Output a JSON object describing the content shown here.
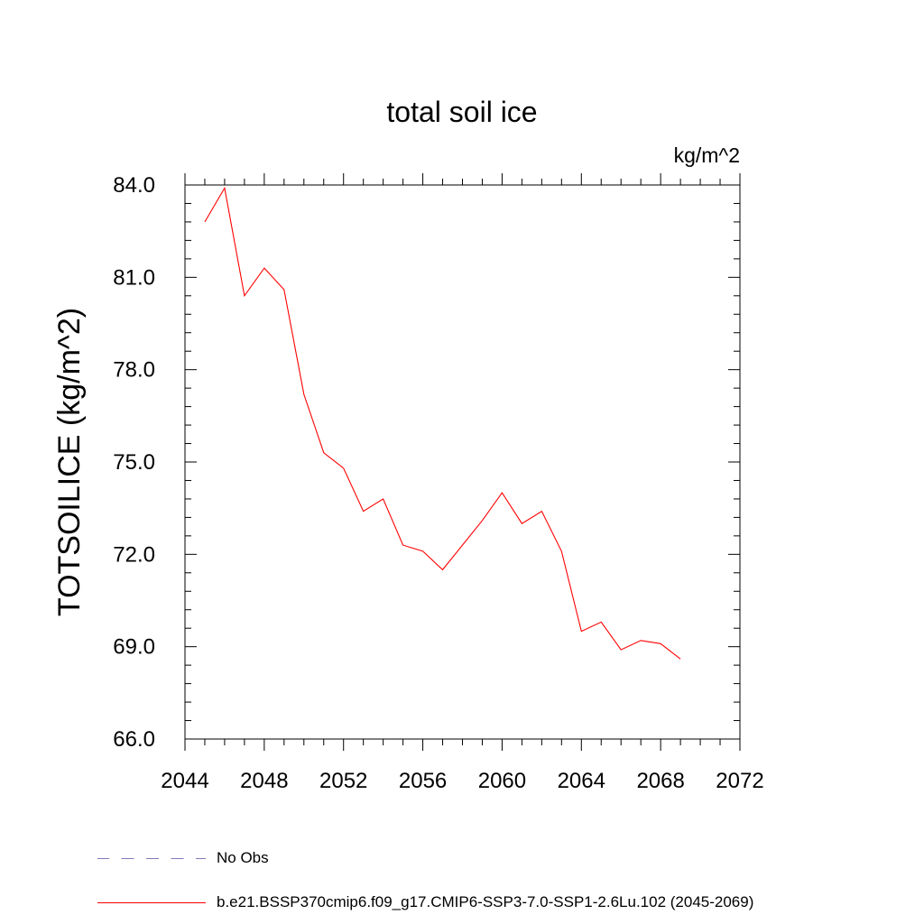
{
  "chart_data": {
    "type": "line",
    "title": "total soil ice",
    "units_label": "kg/m^2",
    "ylabel": "TOTSOILICE  (kg/m^2)",
    "xlabel": "",
    "xlim": [
      2044,
      2072
    ],
    "ylim": [
      66,
      84
    ],
    "x_ticks": [
      2044,
      2048,
      2052,
      2056,
      2060,
      2064,
      2068,
      2072
    ],
    "y_ticks": [
      66,
      69,
      72,
      75,
      78,
      81,
      84
    ],
    "x_tick_labels": [
      "2044",
      "2048",
      "2052",
      "2056",
      "2060",
      "2064",
      "2068",
      "2072"
    ],
    "y_tick_labels": [
      "66.0",
      "69.0",
      "72.0",
      "75.0",
      "78.0",
      "81.0",
      "84.0"
    ],
    "grid": false,
    "series": [
      {
        "name": "b.e21.BSSP370cmip6.f09_g17.CMIP6-SSP3-7.0-SSP1-2.6Lu.102 (2045-2069)",
        "color": "#ff0000",
        "style": "solid",
        "x": [
          2045,
          2046,
          2047,
          2048,
          2049,
          2050,
          2051,
          2052,
          2053,
          2054,
          2055,
          2056,
          2057,
          2058,
          2059,
          2060,
          2061,
          2062,
          2063,
          2064,
          2065,
          2066,
          2067,
          2068,
          2069
        ],
        "y": [
          82.8,
          83.9,
          80.4,
          81.3,
          80.6,
          77.2,
          75.3,
          74.8,
          73.4,
          73.8,
          72.3,
          72.1,
          71.5,
          72.3,
          73.1,
          74.0,
          73.0,
          73.4,
          72.1,
          69.5,
          69.8,
          68.9,
          69.2,
          69.1,
          68.6
        ]
      }
    ],
    "legend": [
      {
        "label": "No Obs",
        "color": "#8877bb",
        "style": "dashed"
      },
      {
        "label": "b.e21.BSSP370cmip6.f09_g17.CMIP6-SSP3-7.0-SSP1-2.6Lu.102 (2045-2069)",
        "color": "#ff0000",
        "style": "solid"
      }
    ],
    "legend_placement": "bottom-left"
  }
}
